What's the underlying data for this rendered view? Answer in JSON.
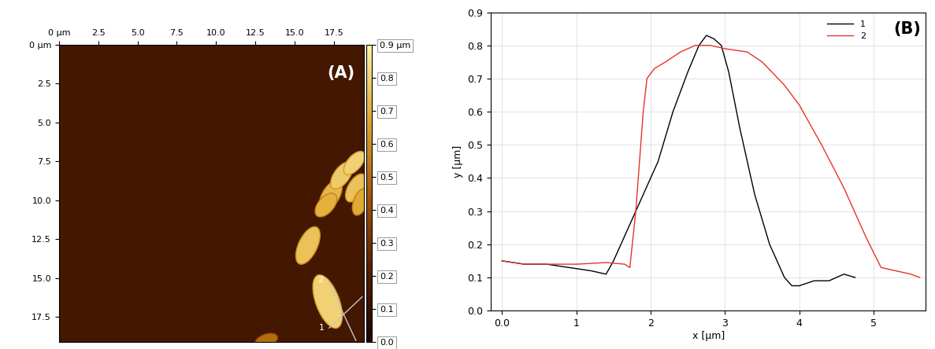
{
  "chart_data": [
    {
      "type": "image",
      "annotation": "(A)",
      "xlim": [
        0,
        19.4
      ],
      "ylim": [
        19.1,
        0
      ],
      "xticks": [
        {
          "value": 0,
          "label": "0 µm"
        },
        2.5,
        5.0,
        7.5,
        10.0,
        12.5,
        15.0,
        17.5
      ],
      "yticks": [
        {
          "value": 0,
          "label": "0 µm"
        },
        2.5,
        5.0,
        7.5,
        10.0,
        12.5,
        15.0,
        17.5
      ],
      "background": 0.15,
      "objects": [
        {
          "x": 17.3,
          "y": 9.7,
          "length": 2.2,
          "width": 1.1,
          "angle": -60,
          "height": 0.72
        },
        {
          "x": 18.0,
          "y": 8.4,
          "length": 2.0,
          "width": 1.0,
          "angle": -55,
          "height": 0.78
        },
        {
          "x": 18.8,
          "y": 7.6,
          "length": 1.8,
          "width": 0.9,
          "angle": -50,
          "height": 0.8
        },
        {
          "x": 18.9,
          "y": 9.2,
          "length": 2.0,
          "width": 1.0,
          "angle": -60,
          "height": 0.75
        },
        {
          "x": 17.0,
          "y": 10.3,
          "length": 1.8,
          "width": 1.0,
          "angle": -50,
          "height": 0.7
        },
        {
          "x": 19.2,
          "y": 10.1,
          "length": 1.8,
          "width": 0.9,
          "angle": -70,
          "height": 0.68
        },
        {
          "x": 15.85,
          "y": 12.9,
          "length": 2.6,
          "width": 1.2,
          "angle": -65,
          "height": 0.75
        },
        {
          "x": 17.1,
          "y": 16.5,
          "length": 3.6,
          "width": 1.5,
          "angle": 70,
          "height": 0.8
        },
        {
          "x": 13.2,
          "y": 19.0,
          "length": 1.5,
          "width": 0.8,
          "angle": -20,
          "height": 0.5
        }
      ],
      "profiles": [
        {
          "name": "1",
          "start": [
            17.2,
            18.2
          ],
          "end": [
            19.3,
            16.2
          ]
        },
        {
          "name": "2",
          "start": [
            17.1,
            15.1
          ],
          "end": [
            18.9,
            19.0
          ]
        }
      ],
      "colorbar_range": [
        0,
        0.9
      ],
      "colorbar_ticks": [
        0.0,
        0.1,
        0.2,
        0.3,
        0.4,
        0.5,
        0.6,
        0.7,
        0.8,
        {
          "value": 0.9,
          "label": "0.9 µm"
        }
      ]
    },
    {
      "type": "line",
      "annotation": "(B)",
      "x_label": "x [µm]",
      "y_label": "y [µm]",
      "xlim": [
        -0.15,
        5.7
      ],
      "ylim": [
        0,
        0.9
      ],
      "xticks": [
        0.0,
        1,
        2,
        3,
        4,
        5
      ],
      "yticks": [
        0.0,
        0.1,
        0.2,
        0.3,
        0.4,
        0.5,
        0.6,
        0.7,
        0.8,
        0.9
      ],
      "grid": true,
      "legend": "upper right",
      "series": [
        {
          "name": "1",
          "color": "#000000",
          "x": [
            0,
            0.3,
            0.6,
            0.9,
            1.2,
            1.4,
            1.5,
            1.7,
            1.9,
            2.1,
            2.3,
            2.5,
            2.65,
            2.75,
            2.85,
            2.95,
            3.05,
            3.2,
            3.4,
            3.6,
            3.8,
            3.9,
            4.0,
            4.2,
            4.4,
            4.6,
            4.75
          ],
          "values": [
            0.15,
            0.14,
            0.14,
            0.13,
            0.12,
            0.11,
            0.15,
            0.25,
            0.35,
            0.45,
            0.6,
            0.72,
            0.8,
            0.83,
            0.82,
            0.8,
            0.72,
            0.55,
            0.35,
            0.2,
            0.1,
            0.075,
            0.075,
            0.09,
            0.09,
            0.11,
            0.1
          ]
        },
        {
          "name": "2",
          "color": "#e8322a",
          "x": [
            0,
            0.3,
            0.6,
            1.0,
            1.4,
            1.65,
            1.72,
            1.8,
            1.9,
            1.95,
            2.05,
            2.2,
            2.4,
            2.6,
            2.8,
            3.0,
            3.3,
            3.5,
            3.8,
            4.0,
            4.3,
            4.6,
            4.9,
            5.1,
            5.3,
            5.5,
            5.62
          ],
          "values": [
            0.15,
            0.14,
            0.14,
            0.14,
            0.145,
            0.14,
            0.13,
            0.3,
            0.6,
            0.7,
            0.73,
            0.75,
            0.78,
            0.8,
            0.8,
            0.79,
            0.78,
            0.75,
            0.68,
            0.62,
            0.5,
            0.37,
            0.22,
            0.13,
            0.12,
            0.11,
            0.1
          ]
        }
      ]
    }
  ]
}
